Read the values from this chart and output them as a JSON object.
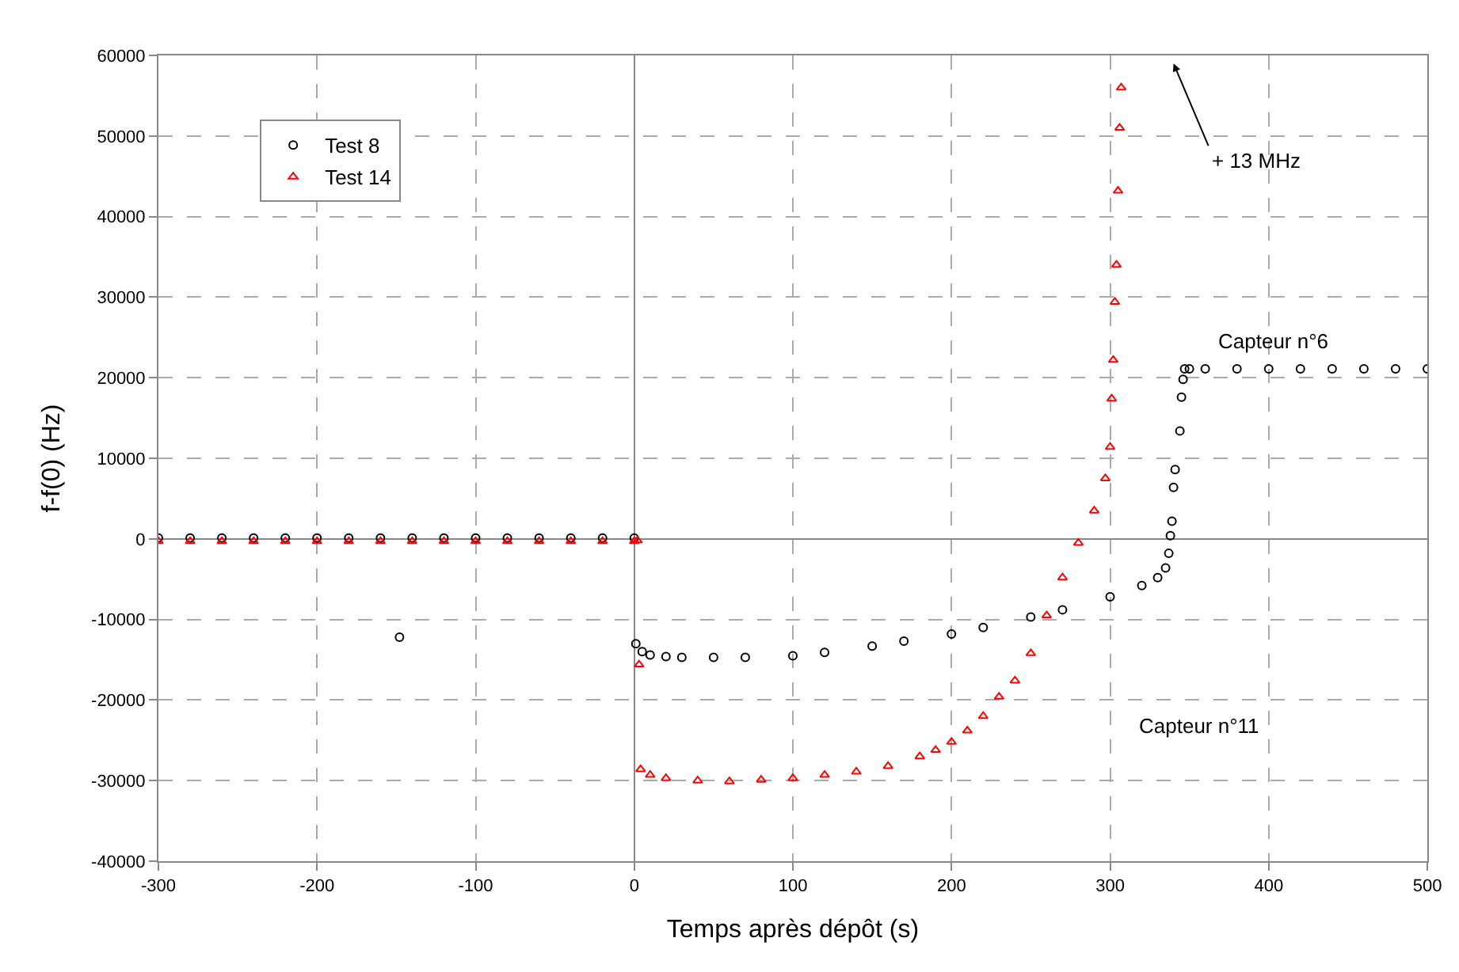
{
  "chart_data": {
    "type": "scatter",
    "xlabel": "Temps après dépôt (s)",
    "ylabel": "f-f(0) (Hz)",
    "xlim": [
      -300,
      500
    ],
    "xticks": [
      -300,
      -200,
      -100,
      0,
      100,
      200,
      300,
      400,
      500
    ],
    "ylim": [
      -40000,
      60000
    ],
    "yticks": [
      -40000,
      -30000,
      -20000,
      -10000,
      0,
      10000,
      20000,
      30000,
      40000,
      50000,
      60000
    ],
    "grid": true,
    "legend": "top left",
    "annotations": [
      "Capteur n°6",
      "Capteur n°11",
      "+ 13 MHz"
    ],
    "series": [
      {
        "name": "Test 8",
        "color": "#000000",
        "marker": "circle",
        "x": [
          -300,
          -280,
          -260,
          -240,
          -220,
          -200,
          -180,
          -160,
          -148,
          -140,
          -120,
          -100,
          -80,
          -60,
          -40,
          -20,
          0,
          1,
          5,
          10,
          20,
          30,
          50,
          70,
          100,
          120,
          150,
          170,
          200,
          220,
          250,
          270,
          300,
          320,
          330,
          335,
          337,
          338,
          339,
          340,
          341,
          344,
          345,
          346,
          347,
          350,
          360,
          380,
          400,
          420,
          440,
          460,
          480,
          500
        ],
        "values": [
          100,
          100,
          100,
          100,
          100,
          100,
          100,
          100,
          -12200,
          100,
          100,
          100,
          100,
          100,
          100,
          100,
          100,
          -13000,
          -14000,
          -14400,
          -14600,
          -14700,
          -14700,
          -14700,
          -14500,
          -14100,
          -13300,
          -12700,
          -11800,
          -11000,
          -9700,
          -8800,
          -7200,
          -5800,
          -4800,
          -3600,
          -1800,
          400,
          2200,
          6400,
          8600,
          13400,
          17600,
          19800,
          21100,
          21100,
          21100,
          21100,
          21100,
          21100,
          21100,
          21100,
          21100,
          21100
        ]
      },
      {
        "name": "Test 14",
        "color": "#ff0000",
        "marker": "triangle",
        "x": [
          -300,
          -280,
          -260,
          -240,
          -220,
          -200,
          -180,
          -160,
          -140,
          -120,
          -100,
          -80,
          -60,
          -40,
          -20,
          0,
          2,
          3,
          4,
          10,
          20,
          40,
          60,
          80,
          100,
          120,
          140,
          160,
          180,
          190,
          200,
          210,
          220,
          230,
          240,
          250,
          260,
          270,
          280,
          290,
          297,
          300,
          301,
          302,
          303,
          304,
          305,
          306,
          307
        ],
        "values": [
          -300,
          -300,
          -300,
          -300,
          -300,
          -300,
          -300,
          -300,
          -300,
          -300,
          -300,
          -300,
          -300,
          -300,
          -300,
          -300,
          -200,
          -15600,
          -28600,
          -29300,
          -29700,
          -30000,
          -30100,
          -29900,
          -29700,
          -29300,
          -28900,
          -28200,
          -27000,
          -26200,
          -25200,
          -23800,
          -22000,
          -19600,
          -17600,
          -14200,
          -9500,
          -4800,
          -500,
          3500,
          7500,
          11400,
          17400,
          22200,
          29400,
          34000,
          43200,
          51000,
          56000
        ]
      }
    ]
  }
}
